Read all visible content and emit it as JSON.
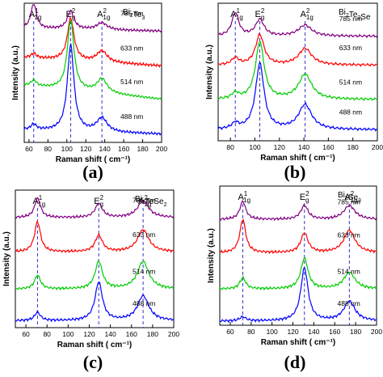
{
  "ylabel": "Intensity (a.u.)",
  "xlabel": "Raman shift ( cm⁻¹)",
  "colors": {
    "785 nm": "#800080",
    "633 nm": "#ff0000",
    "514 nm": "#00cc00",
    "488 nm": "#0000ff",
    "marker": "#3333cc"
  },
  "chart_data": [
    {
      "panel": "(a)",
      "type": "line",
      "material": "Bi2Te3",
      "xlabel": "Raman shift ( cm⁻¹)",
      "ylabel": "Intensity (a.u.)",
      "xlim": [
        55,
        200
      ],
      "xticks": [
        60,
        80,
        100,
        120,
        140,
        160,
        180,
        200
      ],
      "peaks": [
        {
          "mode": "A1g1",
          "x": 65,
          "label_main": "A",
          "label_sup": "1",
          "label_sub": "1g"
        },
        {
          "mode": "Eg2",
          "x": 104,
          "label_main": "E",
          "label_sup": "2",
          "label_sub": "g"
        },
        {
          "mode": "A1g2",
          "x": 137,
          "label_main": "A",
          "label_sup": "2",
          "label_sub": "1g"
        }
      ],
      "series": [
        {
          "name": "785 nm",
          "base": 0.8,
          "slope": 0.02,
          "heights": [
            0.18,
            0.13,
            0.05
          ]
        },
        {
          "name": "633 nm",
          "base": 0.55,
          "slope": 0.06,
          "heights": [
            0.03,
            0.3,
            0.08
          ]
        },
        {
          "name": "514 nm",
          "base": 0.31,
          "slope": 0.1,
          "heights": [
            0.04,
            0.5,
            0.1
          ]
        },
        {
          "name": "488 nm",
          "base": 0.06,
          "slope": 0.03,
          "heights": [
            0.04,
            0.62,
            0.1
          ]
        }
      ]
    },
    {
      "panel": "(b)",
      "type": "line",
      "material": "Bi2Te2Se",
      "xlabel": "Raman shift ( cm⁻¹)",
      "ylabel": "Intensity (a.u.)",
      "xlim": [
        70,
        200
      ],
      "xticks": [
        80,
        100,
        120,
        140,
        160,
        180,
        200
      ],
      "peaks": [
        {
          "mode": "A1g1",
          "x": 84,
          "label_main": "A",
          "label_sup": "1",
          "label_sub": "1g"
        },
        {
          "mode": "Eg2",
          "x": 104,
          "label_main": "E",
          "label_sup": "2",
          "label_sub": "g"
        },
        {
          "mode": "A1g2",
          "x": 141,
          "label_main": "A",
          "label_sup": "2",
          "label_sub": "1g"
        }
      ],
      "series": [
        {
          "name": "785 nm",
          "base": 0.76,
          "slope": 0.0,
          "heights": [
            0.17,
            0.12,
            0.08
          ]
        },
        {
          "name": "633 nm",
          "base": 0.55,
          "slope": 0.0,
          "heights": [
            0.05,
            0.22,
            0.12
          ]
        },
        {
          "name": "514 nm",
          "base": 0.3,
          "slope": 0.0,
          "heights": [
            0.04,
            0.42,
            0.18
          ]
        },
        {
          "name": "488 nm",
          "base": 0.08,
          "slope": 0.0,
          "heights": [
            0.04,
            0.48,
            0.18
          ]
        }
      ]
    },
    {
      "panel": "(c)",
      "type": "line",
      "material": "Bi2TeSe2",
      "xlabel": "Raman shift ( cm⁻¹)",
      "ylabel": "Intensity (a.u.)",
      "xlim": [
        50,
        200
      ],
      "xticks": [
        60,
        80,
        100,
        120,
        140,
        160,
        180,
        200
      ],
      "peaks": [
        {
          "mode": "A1g1",
          "x": 71,
          "label_main": "A",
          "label_sup": "1",
          "label_sub": "1g"
        },
        {
          "mode": "Eg2",
          "x": 129,
          "label_main": "E",
          "label_sup": "2",
          "label_sub": "g"
        },
        {
          "mode": "A1g2",
          "x": 171,
          "label_main": "A",
          "label_sup": "2",
          "label_sub": "1g"
        }
      ],
      "series": [
        {
          "name": "785 nm",
          "base": 0.8,
          "slope": 0.0,
          "heights": [
            0.14,
            0.1,
            0.12
          ]
        },
        {
          "name": "633 nm",
          "base": 0.55,
          "slope": 0.0,
          "heights": [
            0.22,
            0.12,
            0.16
          ]
        },
        {
          "name": "514 nm",
          "base": 0.28,
          "slope": 0.0,
          "heights": [
            0.1,
            0.2,
            0.2
          ]
        },
        {
          "name": "488 nm",
          "base": 0.05,
          "slope": 0.0,
          "heights": [
            0.06,
            0.28,
            0.18
          ]
        }
      ]
    },
    {
      "panel": "(d)",
      "type": "line",
      "material": "Bi2Se3",
      "xlabel": "Raman shift ( cm⁻¹)",
      "ylabel": "Intensity (a.u.)",
      "xlim": [
        50,
        200
      ],
      "xticks": [
        60,
        80,
        100,
        120,
        140,
        160,
        180,
        200
      ],
      "peaks": [
        {
          "mode": "A1g1",
          "x": 72,
          "label_main": "A",
          "label_sup": "1",
          "label_sub": "1g"
        },
        {
          "mode": "Eg2",
          "x": 131,
          "label_main": "E",
          "label_sup": "2",
          "label_sub": "g"
        },
        {
          "mode": "A1g2",
          "x": 174,
          "label_main": "A",
          "label_sup": "2",
          "label_sub": "1g"
        }
      ],
      "series": [
        {
          "name": "785 nm",
          "base": 0.76,
          "slope": 0.0,
          "heights": [
            0.13,
            0.1,
            0.1
          ]
        },
        {
          "name": "633 nm",
          "base": 0.52,
          "slope": 0.0,
          "heights": [
            0.24,
            0.14,
            0.16
          ]
        },
        {
          "name": "514 nm",
          "base": 0.26,
          "slope": 0.0,
          "heights": [
            0.08,
            0.22,
            0.12
          ]
        },
        {
          "name": "488 nm",
          "base": 0.03,
          "slope": 0.0,
          "heights": [
            0.03,
            0.38,
            0.14
          ]
        }
      ]
    }
  ]
}
